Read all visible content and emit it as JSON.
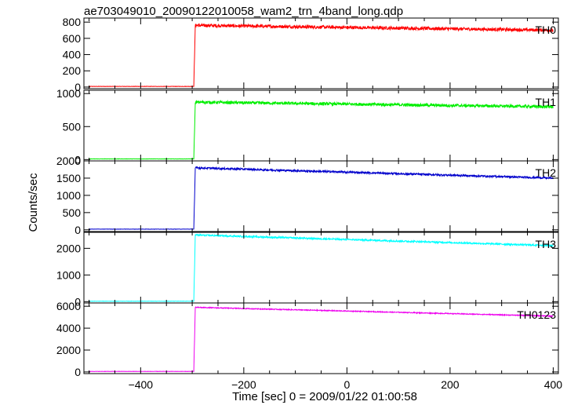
{
  "chart_data": {
    "type": "line",
    "title": "ae703049010_20090122010058_wam2_trn_4band_long.qdp",
    "xlabel": "Time [sec] 0 = 2009/01/22 01:00:58",
    "ylabel": "Counts/sec",
    "xlim": [
      -510,
      410
    ],
    "x_ticks": [
      -400,
      -200,
      0,
      200,
      400
    ],
    "x_tick_labels": [
      "−400",
      "−200",
      "0",
      "200",
      "400"
    ],
    "grid": false,
    "panels": [
      {
        "name": "TH0",
        "color": "#ff0000",
        "ylim": [
          -20,
          850
        ],
        "y_ticks": [
          0,
          200,
          400,
          600,
          800
        ],
        "y_tick_labels": [
          "0",
          "200",
          "400",
          "600",
          "800"
        ],
        "series": {
          "pre_level": 8,
          "onset_x": -297,
          "peak": 760,
          "end": 700,
          "noise": 40
        }
      },
      {
        "name": "TH1",
        "color": "#00ee00",
        "ylim": [
          -20,
          1050
        ],
        "y_ticks": [
          0,
          500,
          1000
        ],
        "y_tick_labels": [
          "0",
          "500",
          "1000"
        ],
        "series": {
          "pre_level": 10,
          "onset_x": -297,
          "peak": 870,
          "end": 800,
          "noise": 45
        }
      },
      {
        "name": "TH2",
        "color": "#0000cc",
        "ylim": [
          -50,
          2000
        ],
        "y_ticks": [
          0,
          500,
          1000,
          1500,
          2000
        ],
        "y_tick_labels": [
          "0",
          "500",
          "1000",
          "1500",
          "2000"
        ],
        "series": {
          "pre_level": 20,
          "onset_x": -297,
          "peak": 1800,
          "end": 1500,
          "noise": 55
        }
      },
      {
        "name": "TH3",
        "color": "#00ffff",
        "ylim": [
          -50,
          2600
        ],
        "y_ticks": [
          0,
          1000,
          2000
        ],
        "y_tick_labels": [
          "0",
          "1000",
          "2000"
        ],
        "series": {
          "pre_level": 15,
          "onset_x": -297,
          "peak": 2500,
          "end": 2100,
          "noise": 60
        }
      },
      {
        "name": "TH0123",
        "color": "#ee00ee",
        "ylim": [
          -150,
          6300
        ],
        "y_ticks": [
          0,
          2000,
          4000,
          6000
        ],
        "y_tick_labels": [
          "0",
          "2000",
          "4000",
          "6000"
        ],
        "series": {
          "pre_level": 50,
          "onset_x": -297,
          "peak": 5900,
          "end": 5100,
          "noise": 80
        }
      }
    ]
  }
}
